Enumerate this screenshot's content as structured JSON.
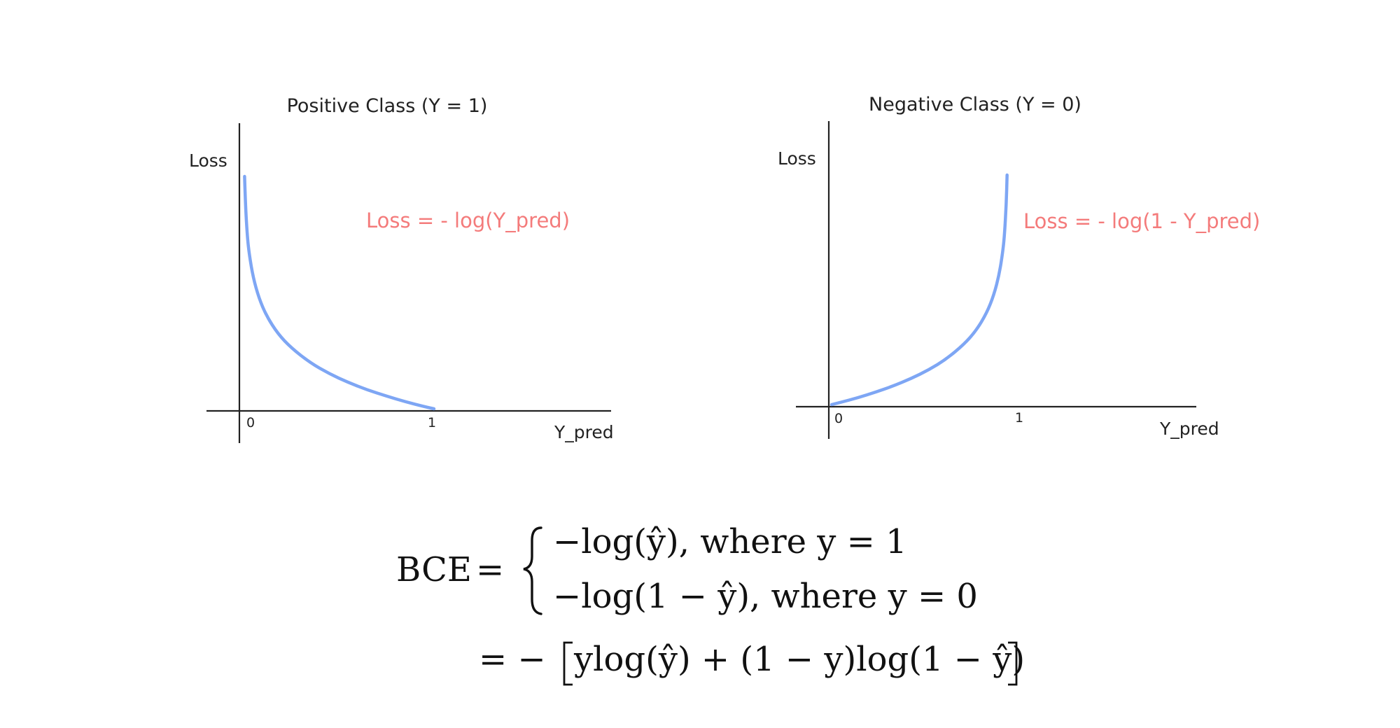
{
  "chart_data": [
    {
      "type": "line",
      "title": "Positive Class (Y = 1)",
      "xlabel": "Y_pred",
      "ylabel": "Loss",
      "xlim": [
        0,
        1
      ],
      "x_ticks": [
        "0",
        "1"
      ],
      "annotation": "Loss = - log(Y_pred)",
      "grid": false,
      "series": [
        {
          "color": "#7ea6f4",
          "x": [
            0.005,
            0.01,
            0.02,
            0.03,
            0.05,
            0.08,
            0.12,
            0.18,
            0.25,
            0.35,
            0.45,
            0.55,
            0.65,
            0.75,
            0.85,
            0.95,
            1.0
          ],
          "y": [
            5.3,
            4.61,
            3.91,
            3.51,
            3.0,
            2.53,
            2.12,
            1.71,
            1.39,
            1.05,
            0.8,
            0.6,
            0.43,
            0.29,
            0.16,
            0.05,
            0.0
          ]
        }
      ]
    },
    {
      "type": "line",
      "title": "Negative Class (Y = 0)",
      "xlabel": "Y_pred",
      "ylabel": "Loss",
      "xlim": [
        0,
        1
      ],
      "x_ticks": [
        "0",
        "1"
      ],
      "annotation": "Loss = - log(1 - Y_pred)",
      "grid": false,
      "series": [
        {
          "color": "#7ea6f4",
          "x": [
            0.0,
            0.05,
            0.15,
            0.25,
            0.35,
            0.45,
            0.55,
            0.65,
            0.75,
            0.82,
            0.88,
            0.92,
            0.95,
            0.97,
            0.98,
            0.99,
            0.995
          ],
          "y": [
            0.0,
            0.05,
            0.16,
            0.29,
            0.43,
            0.6,
            0.8,
            1.05,
            1.39,
            1.71,
            2.12,
            2.53,
            3.0,
            3.51,
            3.91,
            4.61,
            5.3
          ]
        }
      ]
    }
  ],
  "formula": {
    "lhs": "BCE",
    "equals": "=",
    "case1": "−log(ŷ), where y = 1",
    "case2": "−log(1 − ŷ), where y = 0",
    "line2_prefix": "= −",
    "line2_body": "ylog(ŷ) + (1 − y)log(1 − ŷ)"
  },
  "colors": {
    "curve": "#7ea6f4",
    "annotation": "#f47b7b",
    "axis": "#222222",
    "text": "#111111"
  }
}
